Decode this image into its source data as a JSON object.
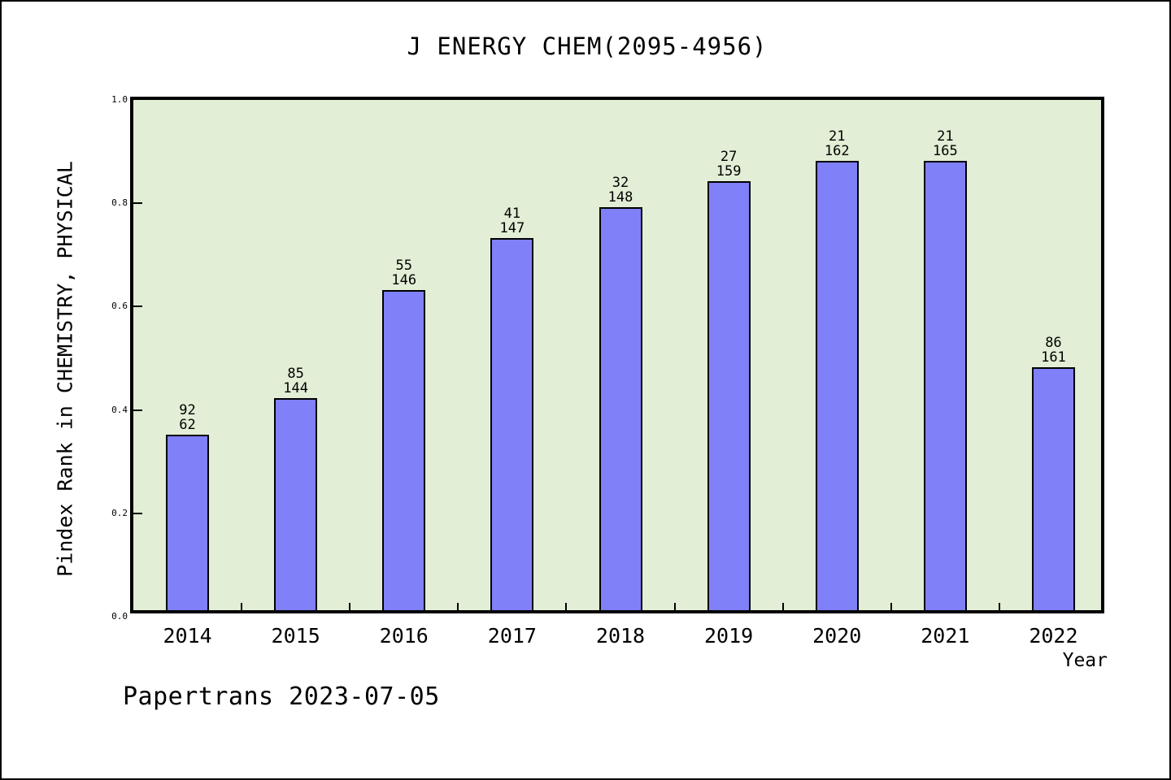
{
  "chart_data": {
    "type": "bar",
    "title": "J ENERGY CHEM(2095-4956)",
    "xlabel": "Year",
    "ylabel": "Pindex Rank in CHEMISTRY, PHYSICAL",
    "categories": [
      "2014",
      "2015",
      "2016",
      "2017",
      "2018",
      "2019",
      "2020",
      "2021",
      "2022"
    ],
    "values": [
      0.34,
      0.41,
      0.62,
      0.72,
      0.78,
      0.83,
      0.87,
      0.87,
      0.47
    ],
    "bar_labels": [
      [
        "92",
        "62"
      ],
      [
        "85",
        "144"
      ],
      [
        "55",
        "146"
      ],
      [
        "41",
        "147"
      ],
      [
        "32",
        "148"
      ],
      [
        "27",
        "159"
      ],
      [
        "21",
        "162"
      ],
      [
        "21",
        "165"
      ],
      [
        "86",
        "161"
      ]
    ],
    "ylim": [
      0.0,
      1.0
    ],
    "yticks": [
      0.0,
      0.2,
      0.4,
      0.6,
      0.8,
      1.0
    ],
    "grid": false,
    "legend_position": "none",
    "bar_color": "#8080f8",
    "bar_border_color": "#000000",
    "plot_bg_color": "#e2eed5"
  },
  "footer": {
    "text": "Papertrans 2023-07-05"
  }
}
